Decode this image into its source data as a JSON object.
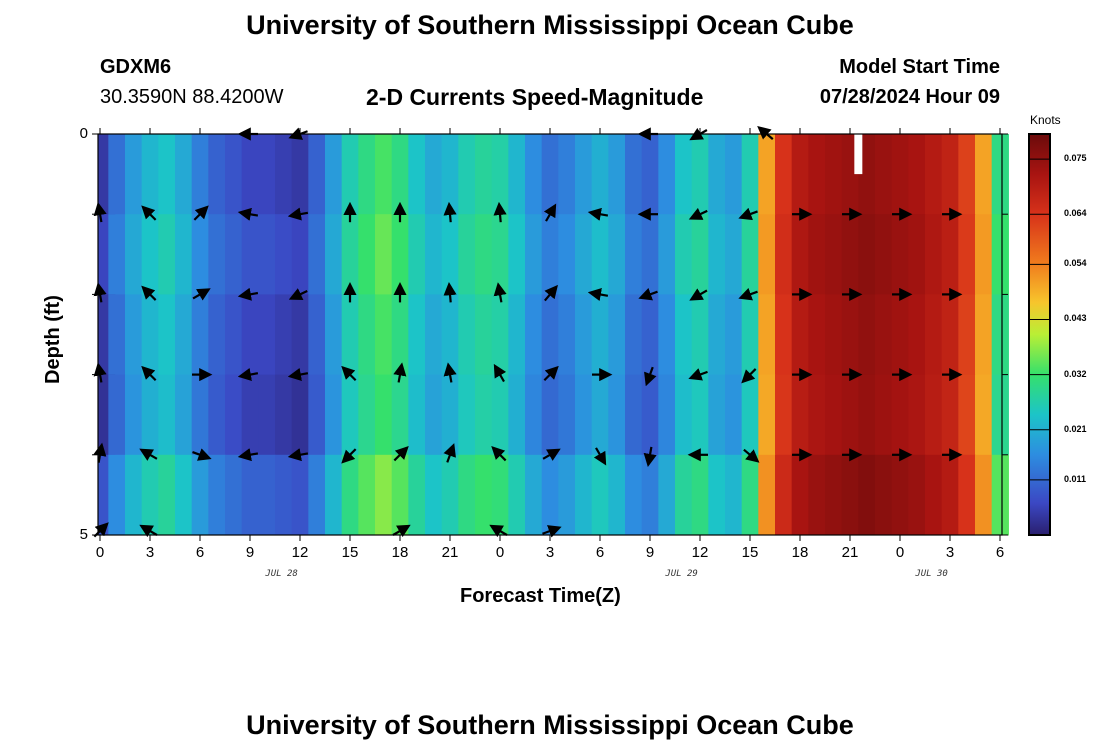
{
  "header": {
    "title": "University of Southern Mississippi Ocean Cube",
    "station_id": "GDXM6",
    "coordinates": "30.3590N  88.4200W",
    "subtitle": "2-D Currents Speed-Magnitude",
    "model_start_label": "Model Start Time",
    "model_start_value": "07/28/2024 Hour 09"
  },
  "footer": {
    "title": "University of Southern Mississippi Ocean Cube"
  },
  "colors": {
    "low": "#3b3fb0",
    "mid": "#33e070",
    "high": "#8a0d0d"
  },
  "chart_data": {
    "type": "heatmap",
    "title": "2-D Currents Speed-Magnitude",
    "xlabel": "Forecast Time(Z)",
    "ylabel": "Depth (ft)",
    "x_ticks": [
      "0",
      "3",
      "6",
      "9",
      "12",
      "15",
      "18",
      "21",
      "0",
      "3",
      "6",
      "9",
      "12",
      "15",
      "18",
      "21",
      "0",
      "3",
      "6"
    ],
    "x_range": [
      0,
      54
    ],
    "date_labels": [
      {
        "label": "JUL 28",
        "x": 11
      },
      {
        "label": "JUL 29",
        "x": 35
      },
      {
        "label": "JUL 30",
        "x": 50
      }
    ],
    "y_ticks": [
      "0",
      "5"
    ],
    "y_range": [
      0,
      5
    ],
    "colorbar": {
      "units": "Knots",
      "ticks": [
        "0.075",
        "0.064",
        "0.054",
        "0.043",
        "0.032",
        "0.021",
        "0.011"
      ],
      "tick_values": [
        0.075,
        0.064,
        0.054,
        0.043,
        0.032,
        0.021,
        0.011
      ],
      "range": [
        0,
        0.08
      ]
    },
    "depth_rows": [
      {
        "depth": 0.25,
        "arrows_deg": [],
        "profile_offset": 0.0
      },
      {
        "depth": 1.0,
        "profile_offset": 0.002
      },
      {
        "depth": 2.0,
        "profile_offset": 0.0
      },
      {
        "depth": 3.0,
        "profile_offset": -0.001
      },
      {
        "depth": 4.0,
        "profile_offset": 0.004
      },
      {
        "depth": 4.75,
        "profile_offset": 0.002
      }
    ],
    "speed_profile_hours": [
      0,
      1,
      2,
      3,
      4,
      5,
      6,
      7,
      8,
      9,
      10,
      11,
      12,
      13,
      14,
      15,
      16,
      17,
      18,
      19,
      20,
      21,
      22,
      23,
      24,
      25,
      26,
      27,
      28,
      29,
      30,
      31,
      32,
      33,
      34,
      35,
      36,
      37,
      38,
      39,
      40,
      41,
      42,
      43,
      44,
      45,
      46,
      47,
      48,
      49,
      50,
      51,
      52,
      53,
      54
    ],
    "speed_profile_knots": [
      0.004,
      0.012,
      0.018,
      0.022,
      0.024,
      0.02,
      0.014,
      0.01,
      0.008,
      0.006,
      0.006,
      0.005,
      0.004,
      0.01,
      0.018,
      0.026,
      0.03,
      0.033,
      0.03,
      0.024,
      0.02,
      0.022,
      0.026,
      0.028,
      0.027,
      0.022,
      0.016,
      0.012,
      0.014,
      0.018,
      0.021,
      0.018,
      0.012,
      0.01,
      0.016,
      0.024,
      0.026,
      0.02,
      0.018,
      0.026,
      0.05,
      0.064,
      0.07,
      0.072,
      0.073,
      0.074,
      0.075,
      0.074,
      0.073,
      0.072,
      0.07,
      0.068,
      0.062,
      0.05,
      0.03
    ],
    "arrow_hours": [
      0,
      3,
      6,
      9,
      12,
      15,
      18,
      21,
      24,
      27,
      30,
      33,
      36,
      39,
      42,
      45,
      48,
      51
    ],
    "arrow_rows": [
      {
        "depth": 1.0,
        "angles_deg": [
          100,
          135,
          45,
          170,
          190,
          90,
          90,
          95,
          95,
          60,
          170,
          180,
          205,
          200,
          0,
          0,
          0,
          0
        ]
      },
      {
        "depth": 2.0,
        "angles_deg": [
          100,
          135,
          30,
          190,
          205,
          90,
          90,
          95,
          100,
          50,
          170,
          200,
          210,
          200,
          0,
          0,
          0,
          0
        ]
      },
      {
        "depth": 3.0,
        "angles_deg": [
          100,
          135,
          0,
          190,
          190,
          135,
          80,
          100,
          120,
          45,
          0,
          250,
          200,
          225,
          0,
          0,
          0,
          0
        ]
      },
      {
        "depth": 4.0,
        "angles_deg": [
          80,
          150,
          340,
          190,
          190,
          225,
          45,
          70,
          135,
          30,
          300,
          260,
          180,
          320,
          0,
          0,
          0,
          0
        ]
      }
    ],
    "partial_arrow_rows": [
      {
        "depth": 0.0,
        "hours": [
          9,
          12,
          33,
          36,
          40
        ],
        "angles_deg": [
          180,
          200,
          180,
          210,
          140
        ]
      },
      {
        "depth": 4.95,
        "hours": [
          0,
          3,
          18,
          24,
          27
        ],
        "angles_deg": [
          45,
          150,
          30,
          150,
          20
        ]
      }
    ],
    "missing_cell": {
      "hour": 45.5,
      "depth_from": 0,
      "depth_to": 0.5
    }
  }
}
